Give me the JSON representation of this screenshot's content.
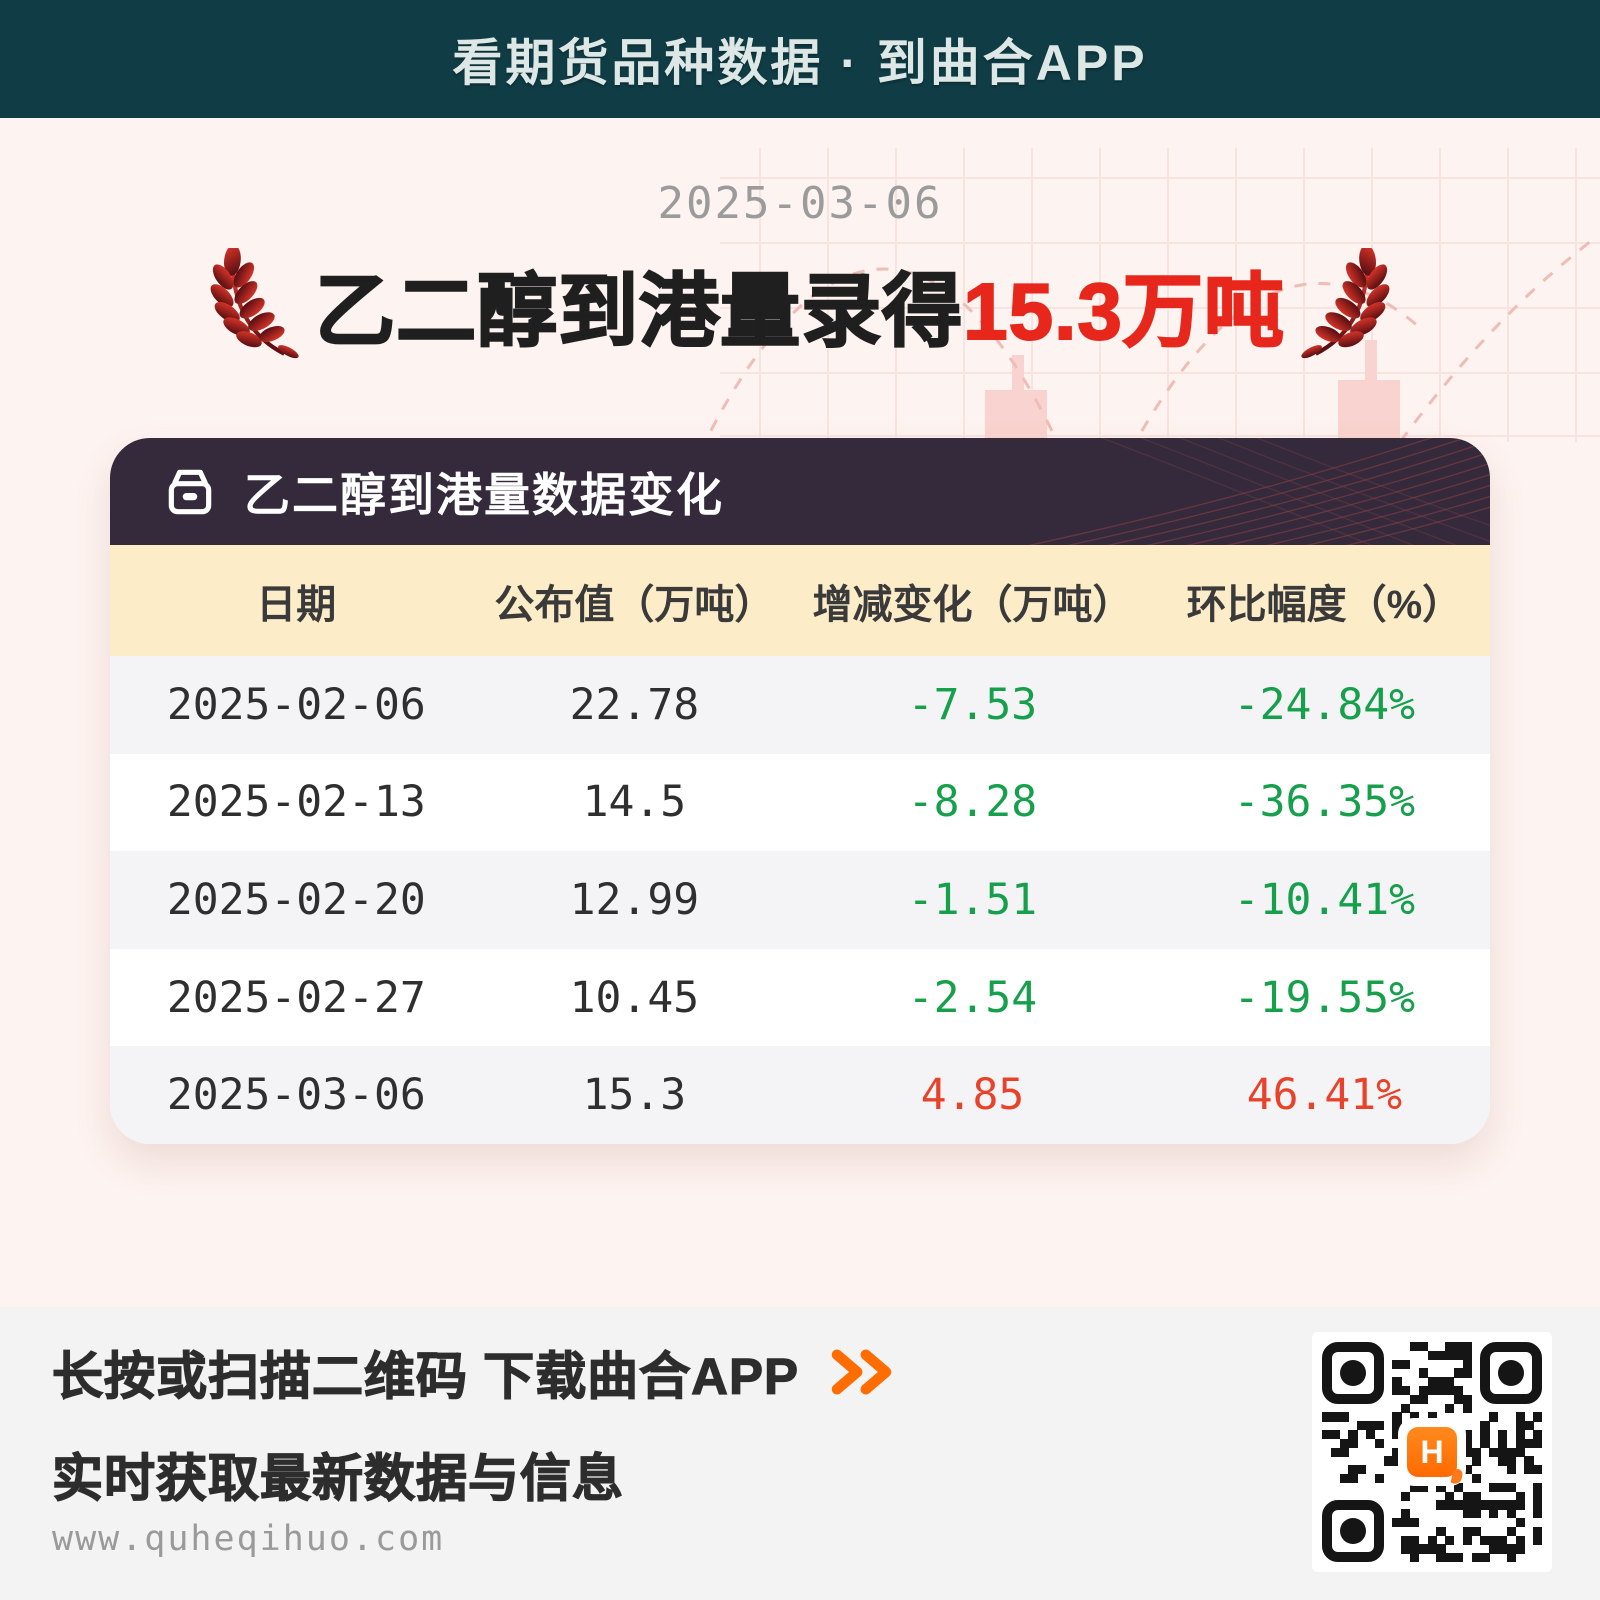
{
  "top_bar": {
    "title": "看期货品种数据 · 到曲合APP"
  },
  "hero": {
    "date": "2025-03-06",
    "headline_black": "乙二醇到港量录得",
    "headline_red": "15.3万吨"
  },
  "card": {
    "title": "乙二醇到港量数据变化",
    "icon": "archive-box-icon",
    "table": {
      "columns": [
        "日期",
        "公布值（万吨）",
        "增减变化（万吨）",
        "环比幅度（%）"
      ],
      "rows": [
        {
          "date": "2025-02-06",
          "value": "22.78",
          "change": "-7.53",
          "pct": "-24.84%",
          "trend": "down"
        },
        {
          "date": "2025-02-13",
          "value": "14.5",
          "change": "-8.28",
          "pct": "-36.35%",
          "trend": "down"
        },
        {
          "date": "2025-02-20",
          "value": "12.99",
          "change": "-1.51",
          "pct": "-10.41%",
          "trend": "down"
        },
        {
          "date": "2025-02-27",
          "value": "10.45",
          "change": "-2.54",
          "pct": "-19.55%",
          "trend": "down"
        },
        {
          "date": "2025-03-06",
          "value": "15.3",
          "change": "4.85",
          "pct": "46.41%",
          "trend": "up"
        }
      ]
    }
  },
  "footer": {
    "cta_line1": "长按或扫描二维码 下载曲合APP",
    "cta_line2": "实时获取最新数据与信息",
    "website": "www.quheqihuo.com",
    "cta_icon": "double-chevron-icon",
    "qr_logo_letter": "H"
  },
  "colors": {
    "topbar_bg": "#0f3c45",
    "page_bg": "#fdf3f0",
    "headline_red": "#e8271c",
    "card_header_bg": "#342a3b",
    "table_header_bg": "#fdecc8",
    "row_alt_bg": "#f4f4f6",
    "trend_down_green": "#16a04c",
    "trend_up_red": "#e8432a",
    "chevron_orange": "#ff6d00",
    "qr_logo_orange": "#ff7a1a"
  }
}
